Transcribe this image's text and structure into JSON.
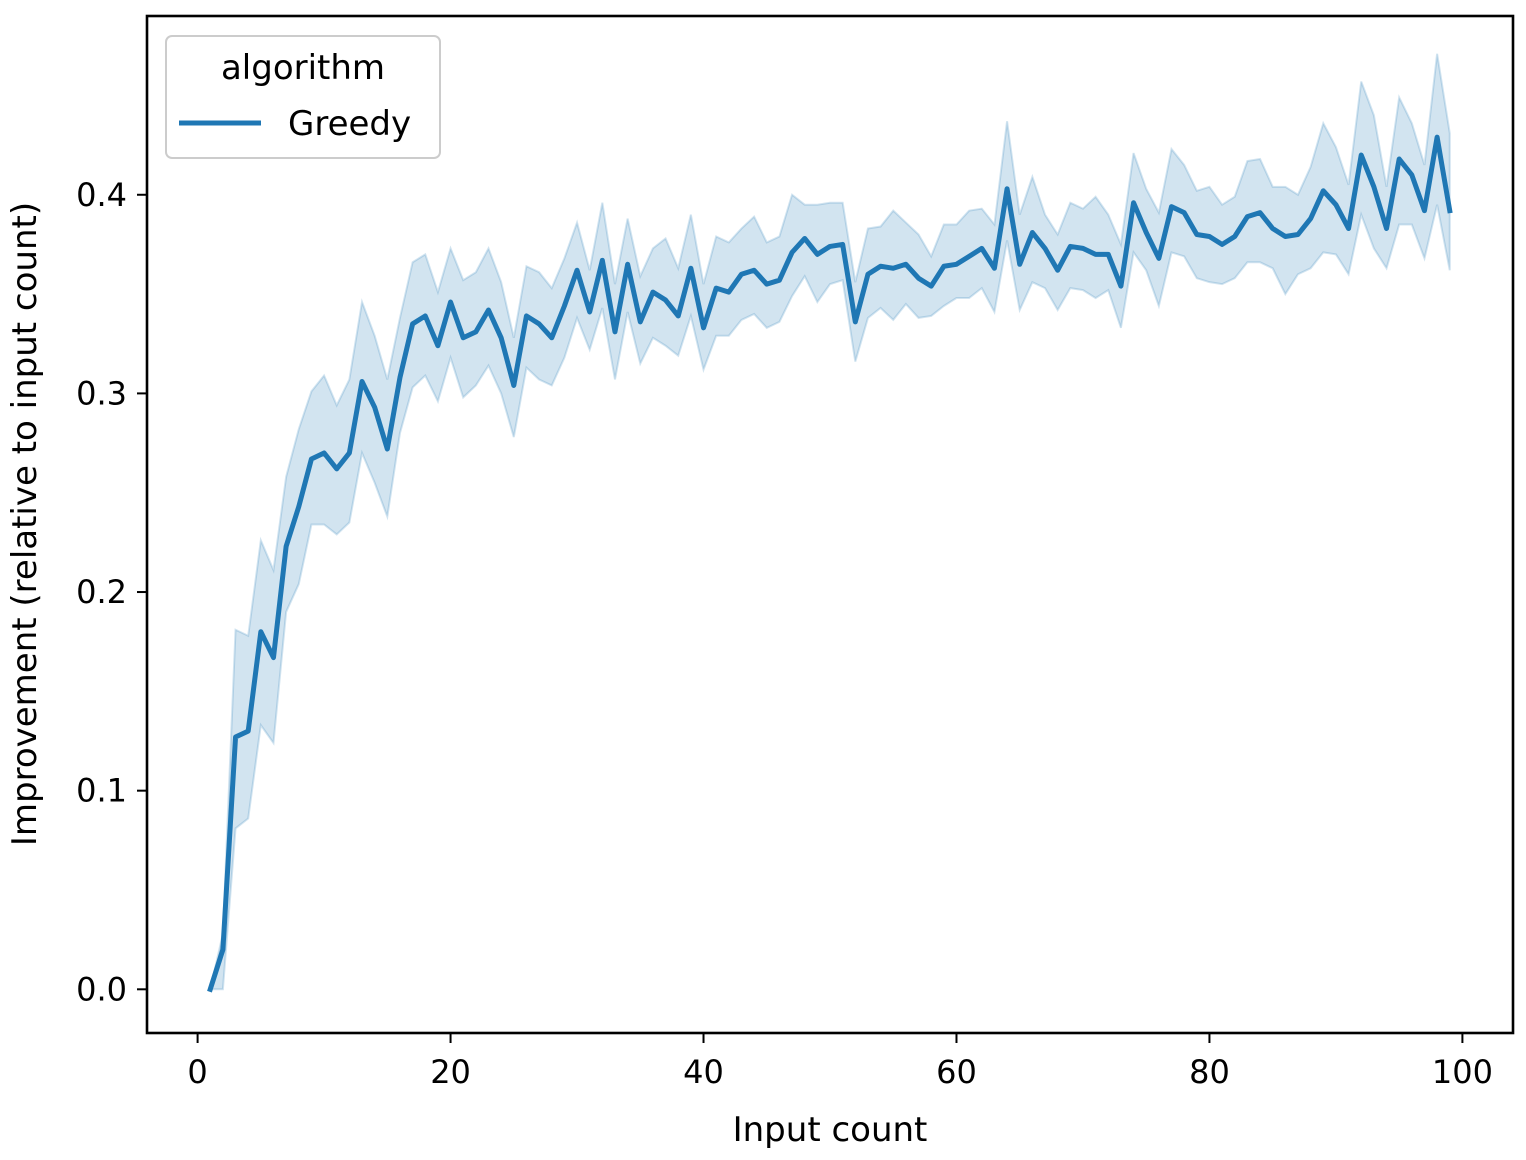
{
  "chart_data": {
    "type": "line",
    "title": "",
    "xlabel": "Input count",
    "ylabel": "Improvement (relative to input count)",
    "xlim": [
      -4,
      104
    ],
    "ylim": [
      -0.022,
      0.49
    ],
    "xticks": [
      0,
      20,
      40,
      60,
      80,
      100
    ],
    "xtick_labels": [
      "0",
      "20",
      "40",
      "60",
      "80",
      "100"
    ],
    "yticks": [
      0.0,
      0.1,
      0.2,
      0.3,
      0.4
    ],
    "ytick_labels": [
      "0.0",
      "0.1",
      "0.2",
      "0.3",
      "0.4"
    ],
    "grid": false,
    "legend": {
      "title": "algorithm",
      "placement": "top-left"
    },
    "series": [
      {
        "name": "Greedy",
        "color": "#1f77b4",
        "band_color": "#1f77b4",
        "x": [
          1,
          2,
          3,
          4,
          5,
          6,
          7,
          8,
          9,
          10,
          11,
          12,
          13,
          14,
          15,
          16,
          17,
          18,
          19,
          20,
          21,
          22,
          23,
          24,
          25,
          26,
          27,
          28,
          29,
          30,
          31,
          32,
          33,
          34,
          35,
          36,
          37,
          38,
          39,
          40,
          41,
          42,
          43,
          44,
          45,
          46,
          47,
          48,
          49,
          50,
          51,
          52,
          53,
          54,
          55,
          56,
          57,
          58,
          59,
          60,
          61,
          62,
          63,
          64,
          65,
          66,
          67,
          68,
          69,
          70,
          71,
          72,
          73,
          74,
          75,
          76,
          77,
          78,
          79,
          80,
          81,
          82,
          83,
          84,
          85,
          86,
          87,
          88,
          89,
          90,
          91,
          92,
          93,
          94,
          95,
          96,
          97,
          98,
          99
        ],
        "y": [
          0.0,
          0.02,
          0.127,
          0.13,
          0.18,
          0.167,
          0.223,
          0.243,
          0.267,
          0.27,
          0.262,
          0.27,
          0.306,
          0.293,
          0.272,
          0.308,
          0.335,
          0.339,
          0.324,
          0.346,
          0.328,
          0.331,
          0.342,
          0.328,
          0.304,
          0.339,
          0.335,
          0.328,
          0.344,
          0.362,
          0.341,
          0.367,
          0.331,
          0.365,
          0.336,
          0.351,
          0.347,
          0.339,
          0.363,
          0.333,
          0.353,
          0.351,
          0.36,
          0.362,
          0.355,
          0.357,
          0.371,
          0.378,
          0.37,
          0.374,
          0.375,
          0.336,
          0.36,
          0.364,
          0.363,
          0.365,
          0.358,
          0.354,
          0.364,
          0.365,
          0.369,
          0.373,
          0.363,
          0.403,
          0.365,
          0.381,
          0.373,
          0.362,
          0.374,
          0.373,
          0.37,
          0.37,
          0.354,
          0.396,
          0.381,
          0.368,
          0.394,
          0.391,
          0.38,
          0.379,
          0.375,
          0.379,
          0.389,
          0.391,
          0.383,
          0.379,
          0.38,
          0.388,
          0.402,
          0.395,
          0.383,
          0.42,
          0.404,
          0.383,
          0.418,
          0.41,
          0.392,
          0.429,
          0.392
        ],
        "y_lower": [
          0.0,
          0.0,
          0.081,
          0.086,
          0.133,
          0.124,
          0.19,
          0.204,
          0.234,
          0.234,
          0.229,
          0.235,
          0.27,
          0.255,
          0.238,
          0.28,
          0.303,
          0.309,
          0.296,
          0.318,
          0.298,
          0.304,
          0.314,
          0.3,
          0.278,
          0.313,
          0.307,
          0.304,
          0.318,
          0.338,
          0.322,
          0.343,
          0.307,
          0.341,
          0.315,
          0.328,
          0.324,
          0.319,
          0.339,
          0.312,
          0.329,
          0.329,
          0.337,
          0.34,
          0.333,
          0.336,
          0.349,
          0.359,
          0.346,
          0.355,
          0.357,
          0.316,
          0.338,
          0.343,
          0.337,
          0.345,
          0.338,
          0.339,
          0.344,
          0.348,
          0.348,
          0.353,
          0.341,
          0.377,
          0.342,
          0.356,
          0.353,
          0.342,
          0.353,
          0.352,
          0.348,
          0.352,
          0.333,
          0.371,
          0.362,
          0.344,
          0.371,
          0.369,
          0.358,
          0.356,
          0.355,
          0.358,
          0.366,
          0.366,
          0.363,
          0.35,
          0.36,
          0.363,
          0.371,
          0.37,
          0.36,
          0.39,
          0.373,
          0.363,
          0.385,
          0.385,
          0.368,
          0.395,
          0.362
        ],
        "y_upper": [
          0.0,
          0.028,
          0.181,
          0.178,
          0.226,
          0.211,
          0.258,
          0.282,
          0.301,
          0.309,
          0.294,
          0.307,
          0.346,
          0.329,
          0.307,
          0.338,
          0.366,
          0.37,
          0.351,
          0.373,
          0.357,
          0.361,
          0.373,
          0.356,
          0.328,
          0.364,
          0.361,
          0.353,
          0.368,
          0.386,
          0.362,
          0.396,
          0.355,
          0.388,
          0.359,
          0.373,
          0.378,
          0.363,
          0.39,
          0.355,
          0.379,
          0.376,
          0.383,
          0.389,
          0.376,
          0.379,
          0.4,
          0.395,
          0.395,
          0.396,
          0.396,
          0.356,
          0.383,
          0.384,
          0.392,
          0.386,
          0.38,
          0.369,
          0.385,
          0.385,
          0.392,
          0.393,
          0.385,
          0.437,
          0.39,
          0.409,
          0.39,
          0.38,
          0.396,
          0.393,
          0.399,
          0.39,
          0.375,
          0.421,
          0.403,
          0.391,
          0.423,
          0.415,
          0.402,
          0.404,
          0.395,
          0.399,
          0.417,
          0.418,
          0.404,
          0.404,
          0.4,
          0.414,
          0.436,
          0.424,
          0.405,
          0.457,
          0.44,
          0.404,
          0.449,
          0.436,
          0.415,
          0.471,
          0.431
        ]
      }
    ]
  }
}
